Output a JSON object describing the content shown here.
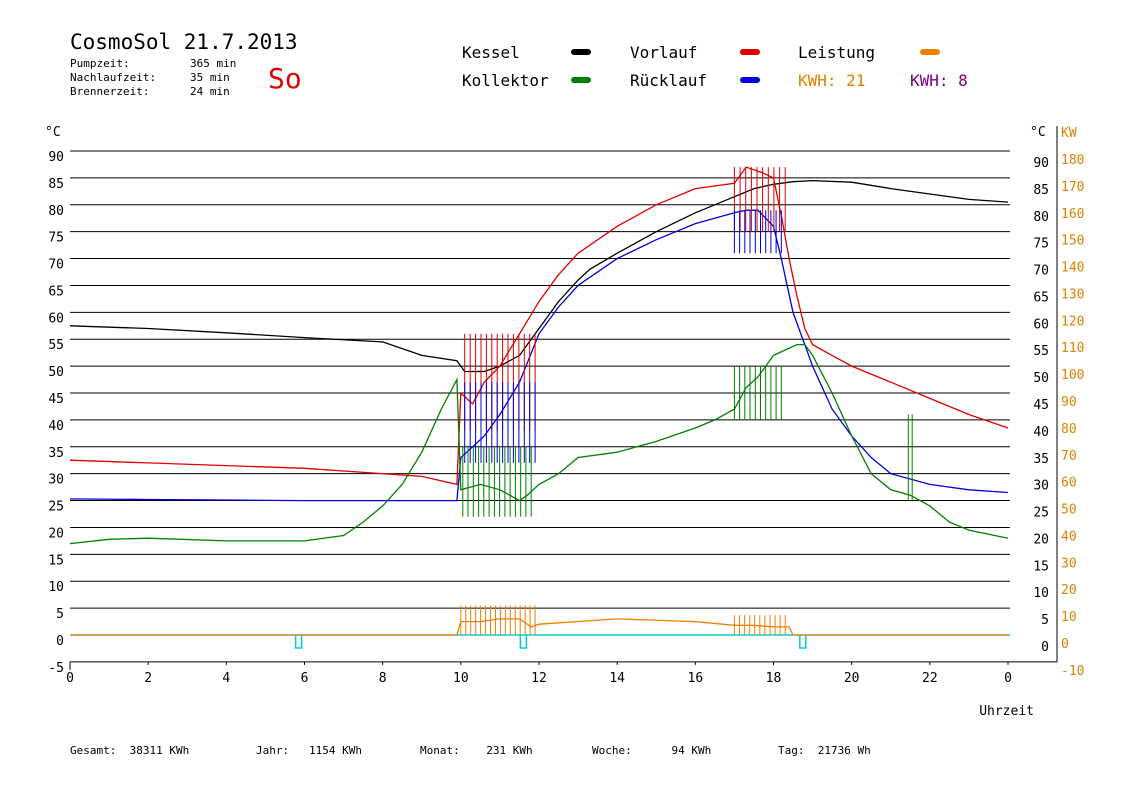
{
  "header": {
    "title": "CosmoSol 21.7.2013",
    "day": "So",
    "stats": [
      {
        "label": "Pumpzeit:",
        "value": "365 min"
      },
      {
        "label": "Nachlaufzeit:",
        "value": "35 min"
      },
      {
        "label": "Brennerzeit:",
        "value": "24 min"
      }
    ]
  },
  "legend": {
    "kessel": {
      "label": "Kessel",
      "color": "#000000"
    },
    "vorlauf": {
      "label": "Vorlauf",
      "color": "#e00000"
    },
    "leistung": {
      "label": "Leistung",
      "color": "#f08000"
    },
    "kollektor": {
      "label": "Kollektor",
      "color": "#008000"
    },
    "ruecklauf": {
      "label": "Rücklauf",
      "color": "#0000e0"
    },
    "kwh1": {
      "label": "KWH: 21",
      "color": "#e08000"
    },
    "kwh2": {
      "label": "KWH: 8",
      "color": "#800080"
    }
  },
  "footer": {
    "gesamt": {
      "label": "Gesamt:",
      "value": "38311 KWh"
    },
    "jahr": {
      "label": "Jahr:",
      "value": "1154 KWh"
    },
    "monat": {
      "label": "Monat:",
      "value": "231 KWh"
    },
    "woche": {
      "label": "Woche:",
      "value": "94 KWh"
    },
    "tag": {
      "label": "Tag:",
      "value": "21736 Wh"
    }
  },
  "chart_data": {
    "type": "line",
    "xlabel": "Uhrzeit",
    "ylabel_left": "°C",
    "ylabel_right_1": "°C",
    "ylabel_right_2": "KW",
    "xlim": [
      0,
      24
    ],
    "ylim": [
      -5,
      90
    ],
    "ylim_kw": [
      -10,
      180
    ],
    "grid": true,
    "x_ticks": [
      "0",
      "2",
      "4",
      "6",
      "8",
      "10",
      "12",
      "14",
      "16",
      "18",
      "20",
      "22",
      "0"
    ],
    "y_ticks_left": [
      "90",
      "85",
      "80",
      "75",
      "70",
      "65",
      "60",
      "55",
      "50",
      "45",
      "40",
      "35",
      "30",
      "25",
      "20",
      "15",
      "10",
      "5",
      "0",
      "-5"
    ],
    "y_ticks_right": [
      "90",
      "85",
      "80",
      "75",
      "70",
      "65",
      "60",
      "55",
      "50",
      "45",
      "40",
      "35",
      "30",
      "25",
      "20",
      "15",
      "10",
      "5",
      "0"
    ],
    "y_ticks_kw": [
      "180",
      "170",
      "160",
      "150",
      "140",
      "130",
      "120",
      "110",
      "100",
      "90",
      "80",
      "70",
      "60",
      "50",
      "40",
      "30",
      "20",
      "10",
      "0",
      "-10"
    ],
    "series": [
      {
        "name": "Kessel",
        "color": "#000000",
        "x": [
          0,
          2,
          4,
          6,
          8,
          9,
          9.9,
          10.1,
          10.6,
          11,
          11.5,
          12,
          12.5,
          13,
          13.3,
          14,
          15,
          16,
          17,
          17.5,
          18,
          18.5,
          19,
          20,
          21,
          22,
          23,
          24
        ],
        "y": [
          57.5,
          57,
          56.2,
          55.3,
          54.5,
          52,
          51,
          49,
          49,
          50,
          52,
          57,
          62,
          66,
          68,
          71,
          75,
          78.5,
          81.5,
          83,
          83.8,
          84.3,
          84.5,
          84.2,
          83,
          82,
          81,
          80.5
        ]
      },
      {
        "name": "Vorlauf",
        "color": "#e00000",
        "x": [
          0,
          2,
          4,
          6,
          8,
          9,
          9.9,
          10,
          10.3,
          10.6,
          11,
          11.5,
          12,
          12.5,
          13,
          14,
          15,
          16,
          17,
          17.3,
          17.7,
          18,
          18.2,
          18.4,
          18.6,
          18.8,
          19,
          19.5,
          20,
          21,
          22,
          23,
          24
        ],
        "y": [
          32.5,
          32,
          31.5,
          31,
          30,
          29.5,
          28,
          45,
          43,
          47,
          50,
          56,
          62,
          67,
          71,
          76,
          80,
          83,
          84,
          87,
          86,
          85,
          78,
          70,
          63,
          57,
          54,
          52,
          50,
          47,
          44,
          41,
          38.5
        ]
      },
      {
        "name": "Rücklauf",
        "color": "#0000e0",
        "x": [
          0,
          2,
          4,
          6,
          8,
          9.9,
          10,
          10.3,
          10.6,
          11,
          11.5,
          12,
          12.5,
          13,
          14,
          15,
          16,
          17,
          17.3,
          17.6,
          18,
          18.2,
          18.5,
          19,
          19.5,
          20,
          20.5,
          21,
          22,
          23,
          24
        ],
        "y": [
          25.3,
          25.2,
          25.1,
          25,
          25,
          25,
          33,
          35,
          37,
          41,
          47,
          56,
          61,
          65,
          70,
          73.5,
          76.5,
          78.5,
          79,
          79,
          76,
          70,
          60,
          50,
          42,
          37,
          33,
          30,
          28,
          27,
          26.5
        ]
      },
      {
        "name": "Kollektor",
        "color": "#008000",
        "x": [
          0,
          1,
          2,
          4,
          6,
          7,
          7.5,
          8,
          8.5,
          9,
          9.5,
          9.9,
          10,
          10.5,
          11,
          11.5,
          11.7,
          12,
          12.5,
          13,
          14,
          15,
          16,
          16.5,
          17,
          17.3,
          17.6,
          18,
          18.3,
          18.6,
          18.8,
          19,
          19.5,
          20,
          20.5,
          21,
          21.5,
          22,
          22.5,
          23,
          24
        ],
        "y": [
          17,
          17.8,
          18,
          17.5,
          17.5,
          18.5,
          21,
          24,
          28,
          34,
          42,
          47.5,
          27,
          28,
          27,
          25,
          26,
          28,
          30,
          33,
          34,
          36,
          38.5,
          40,
          42,
          46,
          48,
          52,
          53,
          54,
          54,
          52,
          45,
          37,
          30,
          27,
          26,
          24,
          21,
          19.5,
          18
        ]
      },
      {
        "name": "Leistung",
        "color": "#f08000",
        "x": [
          0,
          9.9,
          10,
          10.5,
          11,
          11.5,
          11.8,
          12,
          14,
          16,
          17,
          17.5,
          18,
          18.4,
          18.5,
          24
        ],
        "y": [
          0,
          0,
          2.5,
          2.5,
          3,
          3,
          1.5,
          2,
          3,
          2.5,
          1.8,
          1.8,
          1.5,
          1.5,
          0,
          0
        ]
      }
    ]
  }
}
